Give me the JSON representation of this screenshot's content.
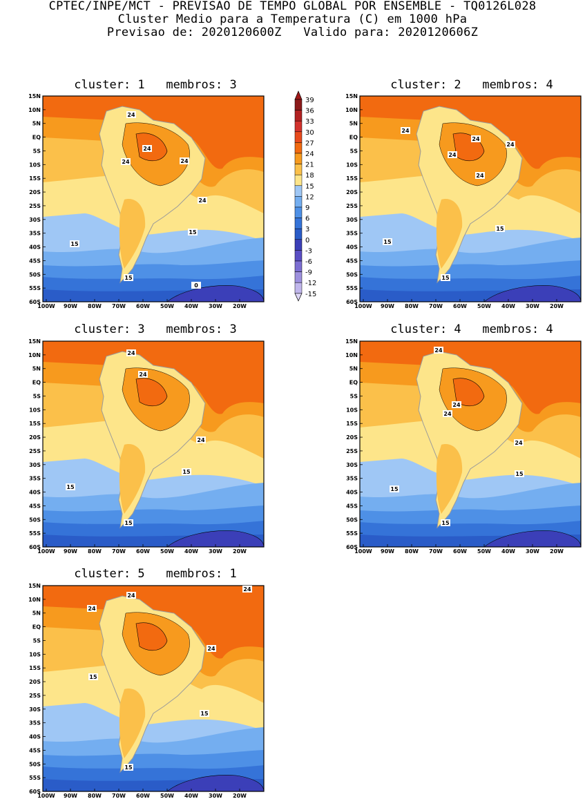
{
  "title": {
    "line1": "CPTEC/INPE/MCT - PREVISAO DE TEMPO GLOBAL POR ENSEMBLE - TQ0126L028",
    "line2": "Cluster Medio para a Temperatura (C) em 1000 hPa",
    "line3": "Previsao de: 2020120600Z   Valido para: 2020120606Z"
  },
  "panels": [
    {
      "title": "cluster: 1   membros: 3",
      "labels": [
        "24",
        "24",
        "24",
        "24",
        "24",
        "15",
        "15",
        "15",
        "0"
      ]
    },
    {
      "title": "cluster: 2   membros: 4",
      "labels": [
        "24",
        "24",
        "24",
        "24",
        "24",
        "15",
        "15",
        "15"
      ]
    },
    {
      "title": "cluster: 3   membros: 3",
      "labels": [
        "24",
        "24",
        "24",
        "15",
        "15",
        "15"
      ]
    },
    {
      "title": "cluster: 4   membros: 4",
      "labels": [
        "24",
        "24",
        "24",
        "24",
        "15",
        "15",
        "15"
      ]
    },
    {
      "title": "cluster: 5   membros: 1",
      "labels": [
        "24",
        "24",
        "24",
        "24",
        "15",
        "15",
        "15"
      ]
    }
  ],
  "lat_ticks": [
    "15N",
    "10N",
    "5N",
    "EQ",
    "5S",
    "10S",
    "15S",
    "20S",
    "25S",
    "30S",
    "35S",
    "40S",
    "45S",
    "50S",
    "55S",
    "60S"
  ],
  "lon_ticks": [
    "100W",
    "90W",
    "80W",
    "70W",
    "60W",
    "50W",
    "40W",
    "30W",
    "20W"
  ],
  "colorbar": {
    "labels": [
      "39",
      "36",
      "33",
      "30",
      "27",
      "24",
      "21",
      "18",
      "15",
      "12",
      "9",
      "6",
      "3",
      "0",
      "-3",
      "-6",
      "-9",
      "-12",
      "-15"
    ],
    "colors": [
      "#8b1a1a",
      "#b22222",
      "#d2322d",
      "#e84a1c",
      "#f26a10",
      "#f79a1e",
      "#fbc04a",
      "#fde58a",
      "#9fc7f5",
      "#74aef0",
      "#4e90e6",
      "#3573d8",
      "#2a5cc8",
      "#3b3fb8",
      "#5a4ec4",
      "#7c6ed2",
      "#9d90de",
      "#c0b6ec"
    ],
    "top_color": "#a01818",
    "bottom_color": "#ddd6f6"
  }
}
